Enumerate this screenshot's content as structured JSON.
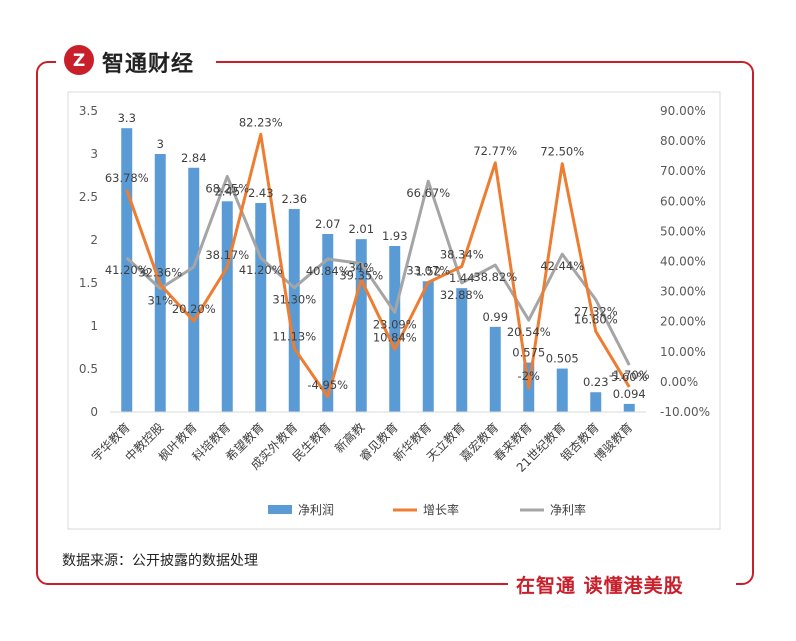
{
  "brand": {
    "name": "智通财经",
    "logo_letter": "Z"
  },
  "footer": {
    "source": "数据来源：公开披露的数据处理",
    "slogan": "在智通  读懂港美股"
  },
  "colors": {
    "frame": "#c81f2b",
    "bar": "#5b9bd5",
    "growth": "#ed7d31",
    "margin": "#a5a5a5"
  },
  "chart_data": {
    "type": "bar",
    "categories": [
      "宇华教育",
      "中教控股",
      "枫叶教育",
      "科培教育",
      "希望教育",
      "成实外教育",
      "民生教育",
      "新高教",
      "睿见教育",
      "新华教育",
      "天立教育",
      "嘉宏教育",
      "春来教育",
      "21世纪教育",
      "银杏教育",
      "博骏教育"
    ],
    "series": [
      {
        "name": "净利润",
        "type": "bar",
        "axis": "left",
        "values": [
          3.3,
          3,
          2.84,
          2.45,
          2.43,
          2.36,
          2.07,
          2.01,
          1.93,
          1.52,
          1.44,
          0.99,
          0.575,
          0.505,
          0.23,
          0.094
        ],
        "labels": [
          "3.3",
          "3",
          "2.84",
          "2.45",
          "2.43",
          "2.36",
          "2.07",
          "2.01",
          "1.93",
          "1.52",
          "1.44",
          "0.99",
          "0.575",
          "0.505",
          "0.23",
          "0.094"
        ]
      },
      {
        "name": "增长率",
        "type": "line",
        "axis": "right",
        "values": [
          63.78,
          32.36,
          20.2,
          38.17,
          82.23,
          11.13,
          -4.95,
          34,
          10.84,
          33.07,
          38.34,
          72.77,
          -2,
          72.5,
          16.8,
          -1.7
        ],
        "labels": [
          "63.78%",
          "32.36%",
          "20.20%",
          "38.17%",
          "82.23%",
          "11.13%",
          "-4.95%",
          "34%",
          "10.84%",
          "33.07%",
          "38.34%",
          "72.77%",
          "-2%",
          "72.50%",
          "16.80%",
          "-1.70%"
        ]
      },
      {
        "name": "净利率",
        "type": "line",
        "axis": "right",
        "values": [
          41.2,
          31,
          38.17,
          68.25,
          41.2,
          31.3,
          40.84,
          39.35,
          23.09,
          66.67,
          32.88,
          38.82,
          20.54,
          42.44,
          27.32,
          5.6
        ],
        "labels": [
          "41.20%",
          "31%",
          "",
          "68.25%",
          "41.20%",
          "31.30%",
          "40.84%",
          "39.35%",
          "23.09%",
          "66.67%",
          "32.88%",
          "38.82%",
          "20.54%",
          "42.44%",
          "27.32%",
          "5.60%"
        ]
      }
    ],
    "y_left": {
      "min": 0,
      "max": 3.5,
      "step": 0.5,
      "ticks": [
        "0",
        "0.5",
        "1",
        "1.5",
        "2",
        "2.5",
        "3",
        "3.5"
      ]
    },
    "y_right": {
      "min": -10,
      "max": 90,
      "step": 10,
      "ticks": [
        "-10.00%",
        "0.00%",
        "10.00%",
        "20.00%",
        "30.00%",
        "40.00%",
        "50.00%",
        "60.00%",
        "70.00%",
        "80.00%",
        "90.00%"
      ]
    },
    "legend": {
      "position": "bottom",
      "items": [
        "净利润",
        "增长率",
        "净利率"
      ]
    },
    "title": "",
    "xlabel": "",
    "ylabel": ""
  }
}
